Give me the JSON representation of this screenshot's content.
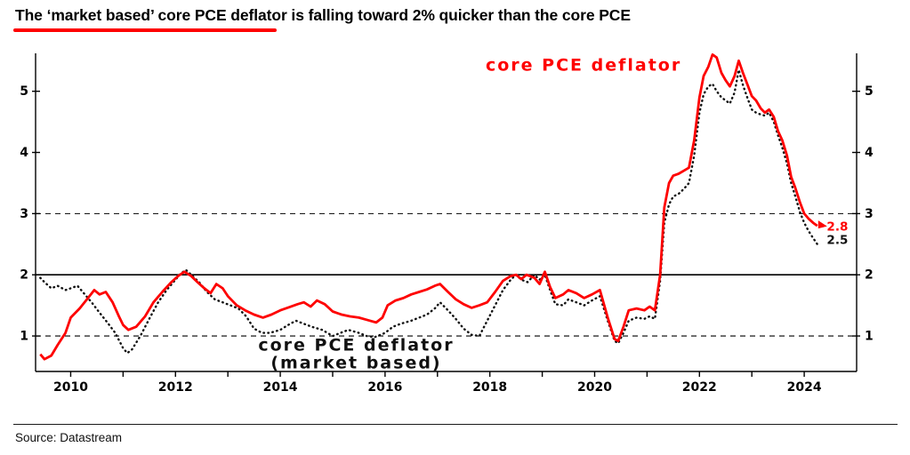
{
  "title": "The ‘market based’ core PCE deflator is falling toward 2% quicker than the core PCE",
  "source": "Source: Datastream",
  "accent_color": "#fe0000",
  "chart_data": {
    "type": "line",
    "title": "The ‘market based’ core PCE deflator is falling toward 2% quicker than the core PCE",
    "xlabel": "",
    "ylabel": "",
    "xlim": [
      2009.33,
      2025.0
    ],
    "ylim": [
      0.42,
      5.62
    ],
    "grid": "horizontal-reference-lines-only",
    "y_ticks": [
      1,
      2,
      3,
      4,
      5
    ],
    "x_ticks": [
      2010,
      2011,
      2012,
      2013,
      2014,
      2015,
      2016,
      2017,
      2018,
      2019,
      2020,
      2021,
      2022,
      2023,
      2024
    ],
    "x_tick_labels": [
      2010,
      2012,
      2014,
      2016,
      2018,
      2020,
      2022,
      2024
    ],
    "reference_lines": [
      {
        "y": 1,
        "style": "dashed"
      },
      {
        "y": 2,
        "style": "solid"
      },
      {
        "y": 3,
        "style": "dashed"
      }
    ],
    "series": [
      {
        "id": "market-based",
        "name": "core PCE deflator (market based)",
        "color": "#111111",
        "style": "dotted",
        "points": [
          [
            2009.42,
            1.95
          ],
          [
            2009.5,
            1.88
          ],
          [
            2009.63,
            1.78
          ],
          [
            2009.75,
            1.82
          ],
          [
            2009.9,
            1.75
          ],
          [
            2010.0,
            1.78
          ],
          [
            2010.13,
            1.82
          ],
          [
            2010.25,
            1.7
          ],
          [
            2010.4,
            1.55
          ],
          [
            2010.55,
            1.38
          ],
          [
            2010.7,
            1.22
          ],
          [
            2010.85,
            1.05
          ],
          [
            2011.0,
            0.8
          ],
          [
            2011.08,
            0.72
          ],
          [
            2011.17,
            0.78
          ],
          [
            2011.33,
            1.0
          ],
          [
            2011.5,
            1.28
          ],
          [
            2011.67,
            1.55
          ],
          [
            2011.83,
            1.75
          ],
          [
            2012.0,
            1.92
          ],
          [
            2012.1,
            2.02
          ],
          [
            2012.2,
            2.08
          ],
          [
            2012.3,
            2.0
          ],
          [
            2012.45,
            1.88
          ],
          [
            2012.6,
            1.72
          ],
          [
            2012.75,
            1.6
          ],
          [
            2012.9,
            1.55
          ],
          [
            2013.05,
            1.5
          ],
          [
            2013.2,
            1.45
          ],
          [
            2013.35,
            1.32
          ],
          [
            2013.5,
            1.12
          ],
          [
            2013.65,
            1.05
          ],
          [
            2013.8,
            1.05
          ],
          [
            2014.0,
            1.1
          ],
          [
            2014.15,
            1.18
          ],
          [
            2014.3,
            1.25
          ],
          [
            2014.45,
            1.2
          ],
          [
            2014.6,
            1.15
          ],
          [
            2014.8,
            1.1
          ],
          [
            2015.0,
            1.0
          ],
          [
            2015.15,
            1.05
          ],
          [
            2015.3,
            1.1
          ],
          [
            2015.5,
            1.05
          ],
          [
            2015.65,
            1.0
          ],
          [
            2015.8,
            0.98
          ],
          [
            2016.0,
            1.05
          ],
          [
            2016.15,
            1.15
          ],
          [
            2016.3,
            1.2
          ],
          [
            2016.5,
            1.25
          ],
          [
            2016.65,
            1.3
          ],
          [
            2016.8,
            1.35
          ],
          [
            2016.95,
            1.45
          ],
          [
            2017.05,
            1.55
          ],
          [
            2017.2,
            1.42
          ],
          [
            2017.35,
            1.28
          ],
          [
            2017.5,
            1.12
          ],
          [
            2017.65,
            1.02
          ],
          [
            2017.8,
            1.0
          ],
          [
            2017.95,
            1.25
          ],
          [
            2018.1,
            1.5
          ],
          [
            2018.25,
            1.75
          ],
          [
            2018.4,
            1.92
          ],
          [
            2018.5,
            2.0
          ],
          [
            2018.6,
            1.92
          ],
          [
            2018.72,
            1.88
          ],
          [
            2018.85,
            2.0
          ],
          [
            2018.95,
            1.92
          ],
          [
            2019.05,
            2.0
          ],
          [
            2019.15,
            1.75
          ],
          [
            2019.25,
            1.52
          ],
          [
            2019.4,
            1.5
          ],
          [
            2019.5,
            1.6
          ],
          [
            2019.65,
            1.55
          ],
          [
            2019.8,
            1.5
          ],
          [
            2019.95,
            1.58
          ],
          [
            2020.1,
            1.65
          ],
          [
            2020.25,
            1.25
          ],
          [
            2020.38,
            0.92
          ],
          [
            2020.45,
            0.88
          ],
          [
            2020.55,
            1.05
          ],
          [
            2020.65,
            1.25
          ],
          [
            2020.8,
            1.3
          ],
          [
            2020.95,
            1.28
          ],
          [
            2021.05,
            1.32
          ],
          [
            2021.15,
            1.28
          ],
          [
            2021.25,
            1.9
          ],
          [
            2021.33,
            2.85
          ],
          [
            2021.42,
            3.15
          ],
          [
            2021.5,
            3.28
          ],
          [
            2021.6,
            3.32
          ],
          [
            2021.7,
            3.4
          ],
          [
            2021.8,
            3.5
          ],
          [
            2021.9,
            3.95
          ],
          [
            2022.0,
            4.65
          ],
          [
            2022.08,
            4.95
          ],
          [
            2022.17,
            5.08
          ],
          [
            2022.25,
            5.12
          ],
          [
            2022.33,
            5.0
          ],
          [
            2022.42,
            4.9
          ],
          [
            2022.5,
            4.85
          ],
          [
            2022.58,
            4.8
          ],
          [
            2022.67,
            4.98
          ],
          [
            2022.75,
            5.35
          ],
          [
            2022.83,
            5.1
          ],
          [
            2022.92,
            4.88
          ],
          [
            2023.0,
            4.7
          ],
          [
            2023.08,
            4.65
          ],
          [
            2023.17,
            4.62
          ],
          [
            2023.25,
            4.6
          ],
          [
            2023.33,
            4.65
          ],
          [
            2023.42,
            4.5
          ],
          [
            2023.5,
            4.28
          ],
          [
            2023.58,
            4.08
          ],
          [
            2023.67,
            3.82
          ],
          [
            2023.75,
            3.5
          ],
          [
            2023.83,
            3.28
          ],
          [
            2023.92,
            3.02
          ],
          [
            2024.0,
            2.85
          ],
          [
            2024.08,
            2.72
          ],
          [
            2024.17,
            2.6
          ],
          [
            2024.25,
            2.5
          ]
        ]
      },
      {
        "id": "core-pce-deflator",
        "name": "core PCE deflator",
        "color": "#fe0000",
        "style": "solid",
        "points": [
          [
            2009.42,
            0.7
          ],
          [
            2009.5,
            0.62
          ],
          [
            2009.63,
            0.68
          ],
          [
            2009.75,
            0.85
          ],
          [
            2009.9,
            1.05
          ],
          [
            2010.0,
            1.3
          ],
          [
            2010.17,
            1.45
          ],
          [
            2010.33,
            1.62
          ],
          [
            2010.45,
            1.75
          ],
          [
            2010.55,
            1.68
          ],
          [
            2010.67,
            1.72
          ],
          [
            2010.8,
            1.55
          ],
          [
            2010.92,
            1.32
          ],
          [
            2011.0,
            1.18
          ],
          [
            2011.1,
            1.1
          ],
          [
            2011.25,
            1.15
          ],
          [
            2011.42,
            1.32
          ],
          [
            2011.58,
            1.55
          ],
          [
            2011.75,
            1.72
          ],
          [
            2011.92,
            1.88
          ],
          [
            2012.05,
            1.98
          ],
          [
            2012.17,
            2.05
          ],
          [
            2012.3,
            1.98
          ],
          [
            2012.42,
            1.88
          ],
          [
            2012.55,
            1.78
          ],
          [
            2012.67,
            1.7
          ],
          [
            2012.78,
            1.85
          ],
          [
            2012.9,
            1.78
          ],
          [
            2013.0,
            1.65
          ],
          [
            2013.17,
            1.5
          ],
          [
            2013.33,
            1.42
          ],
          [
            2013.5,
            1.35
          ],
          [
            2013.67,
            1.3
          ],
          [
            2013.83,
            1.35
          ],
          [
            2014.0,
            1.42
          ],
          [
            2014.17,
            1.47
          ],
          [
            2014.33,
            1.52
          ],
          [
            2014.45,
            1.55
          ],
          [
            2014.58,
            1.48
          ],
          [
            2014.7,
            1.58
          ],
          [
            2014.85,
            1.52
          ],
          [
            2015.0,
            1.4
          ],
          [
            2015.17,
            1.35
          ],
          [
            2015.33,
            1.32
          ],
          [
            2015.5,
            1.3
          ],
          [
            2015.67,
            1.26
          ],
          [
            2015.83,
            1.22
          ],
          [
            2015.95,
            1.3
          ],
          [
            2016.05,
            1.5
          ],
          [
            2016.2,
            1.58
          ],
          [
            2016.35,
            1.62
          ],
          [
            2016.5,
            1.68
          ],
          [
            2016.65,
            1.72
          ],
          [
            2016.8,
            1.76
          ],
          [
            2016.95,
            1.82
          ],
          [
            2017.05,
            1.85
          ],
          [
            2017.2,
            1.72
          ],
          [
            2017.35,
            1.6
          ],
          [
            2017.5,
            1.52
          ],
          [
            2017.65,
            1.46
          ],
          [
            2017.8,
            1.5
          ],
          [
            2017.95,
            1.55
          ],
          [
            2018.1,
            1.72
          ],
          [
            2018.25,
            1.9
          ],
          [
            2018.4,
            1.98
          ],
          [
            2018.5,
            2.0
          ],
          [
            2018.6,
            1.93
          ],
          [
            2018.7,
            2.0
          ],
          [
            2018.85,
            1.95
          ],
          [
            2018.95,
            1.85
          ],
          [
            2019.05,
            2.05
          ],
          [
            2019.15,
            1.8
          ],
          [
            2019.25,
            1.62
          ],
          [
            2019.4,
            1.68
          ],
          [
            2019.5,
            1.75
          ],
          [
            2019.65,
            1.7
          ],
          [
            2019.8,
            1.62
          ],
          [
            2019.95,
            1.68
          ],
          [
            2020.1,
            1.75
          ],
          [
            2020.25,
            1.3
          ],
          [
            2020.38,
            0.95
          ],
          [
            2020.45,
            0.92
          ],
          [
            2020.55,
            1.15
          ],
          [
            2020.65,
            1.42
          ],
          [
            2020.8,
            1.45
          ],
          [
            2020.95,
            1.42
          ],
          [
            2021.05,
            1.48
          ],
          [
            2021.15,
            1.42
          ],
          [
            2021.25,
            2.0
          ],
          [
            2021.33,
            3.1
          ],
          [
            2021.42,
            3.5
          ],
          [
            2021.5,
            3.62
          ],
          [
            2021.6,
            3.65
          ],
          [
            2021.7,
            3.7
          ],
          [
            2021.8,
            3.75
          ],
          [
            2021.9,
            4.2
          ],
          [
            2022.0,
            4.9
          ],
          [
            2022.08,
            5.25
          ],
          [
            2022.17,
            5.4
          ],
          [
            2022.25,
            5.6
          ],
          [
            2022.33,
            5.55
          ],
          [
            2022.42,
            5.3
          ],
          [
            2022.5,
            5.18
          ],
          [
            2022.58,
            5.08
          ],
          [
            2022.67,
            5.25
          ],
          [
            2022.75,
            5.5
          ],
          [
            2022.83,
            5.3
          ],
          [
            2022.92,
            5.1
          ],
          [
            2023.0,
            4.92
          ],
          [
            2023.08,
            4.85
          ],
          [
            2023.17,
            4.72
          ],
          [
            2023.25,
            4.65
          ],
          [
            2023.33,
            4.7
          ],
          [
            2023.42,
            4.58
          ],
          [
            2023.5,
            4.35
          ],
          [
            2023.58,
            4.2
          ],
          [
            2023.67,
            3.95
          ],
          [
            2023.75,
            3.6
          ],
          [
            2023.83,
            3.42
          ],
          [
            2023.92,
            3.18
          ],
          [
            2024.0,
            3.0
          ],
          [
            2024.08,
            2.92
          ],
          [
            2024.17,
            2.85
          ],
          [
            2024.25,
            2.8
          ]
        ]
      }
    ],
    "annotations": [
      {
        "id": "legend-core-pce",
        "text": "core PCE deflator",
        "x": 2019.79,
        "y": 5.42,
        "color": "#fe0000",
        "size": 19,
        "anchor": "middle",
        "letter_spacing": 2
      },
      {
        "id": "legend-market-based-line1",
        "text": "core PCE deflator",
        "x": 2015.45,
        "y": 0.84,
        "color": "#111111",
        "size": 19,
        "anchor": "middle",
        "letter_spacing": 2
      },
      {
        "id": "legend-market-based-line2",
        "text": "(market based)",
        "x": 2015.45,
        "y": 0.55,
        "color": "#111111",
        "size": 19,
        "anchor": "middle",
        "letter_spacing": 2
      },
      {
        "id": "end-value-core-pce",
        "text": "2.8",
        "x": 2024.43,
        "y": 2.78,
        "color": "#fe0000",
        "size": 13.5,
        "anchor": "start",
        "letter_spacing": 0
      },
      {
        "id": "end-value-market-based",
        "text": "2.5",
        "x": 2024.43,
        "y": 2.56,
        "color": "#111111",
        "size": 13.5,
        "anchor": "start",
        "letter_spacing": 0
      }
    ],
    "end_marker": {
      "x": 2024.25,
      "y": 2.8,
      "color": "#fe0000"
    },
    "legend_position": "inline-annotations",
    "axis_labels_both_sides": true
  }
}
